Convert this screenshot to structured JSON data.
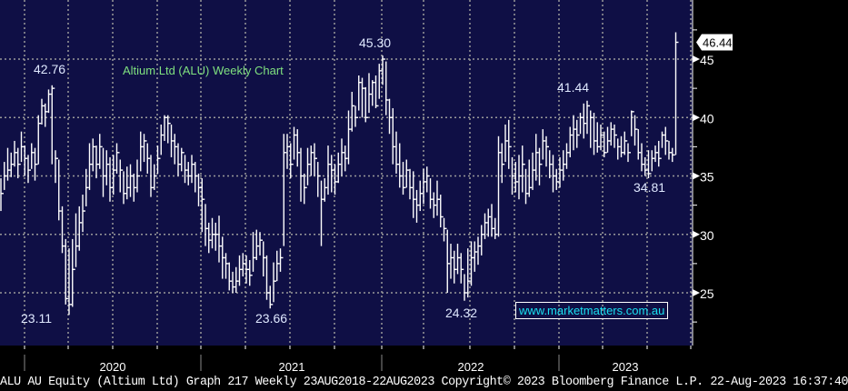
{
  "chart_data": {
    "type": "ohlc-bar",
    "title": "Altium Ltd (ALU) Weekly Chart",
    "frequency": "Weekly",
    "ylim": [
      21,
      50
    ],
    "yticks": [
      25,
      30,
      35,
      40,
      45
    ],
    "xtick_labels": [
      "2020",
      "2021",
      "2022",
      "2023"
    ],
    "grid": true,
    "last_price": "46.44",
    "annotations": [
      "42.76",
      "23.11",
      "23.66",
      "45.30",
      "24.32",
      "41.44",
      "34.81"
    ],
    "close": [
      33.5,
      35,
      35.5,
      36,
      37,
      36,
      37.5,
      36.5,
      35.5,
      37,
      36,
      39.5,
      41,
      40.5,
      42,
      42.5,
      36.5,
      32,
      29,
      24.5,
      24,
      27,
      29,
      31,
      32,
      34,
      36,
      37.5,
      36,
      37.5,
      35,
      36,
      34,
      35.5,
      37,
      35.5,
      33.5,
      34,
      35,
      34,
      35,
      37.5,
      38,
      36.5,
      34,
      35,
      36.5,
      38.5,
      40,
      39.5,
      38,
      37.5,
      36,
      37,
      35.5,
      35,
      36,
      35,
      34,
      33,
      30.5,
      29.5,
      30,
      30,
      29,
      28,
      27.5,
      26,
      25.5,
      26,
      27,
      27.5,
      27,
      26.5,
      28,
      29,
      29.5,
      28,
      25,
      24,
      26,
      27.5,
      28,
      37,
      37.5,
      36,
      38.5,
      37,
      35,
      34,
      36,
      37,
      36.5,
      35,
      33,
      34,
      36,
      35.5,
      34.5,
      36,
      37,
      36.5,
      39,
      41,
      40,
      43,
      42.5,
      40,
      42,
      43,
      41,
      44,
      45,
      41.5,
      40,
      37.5,
      36,
      35,
      34,
      35.5,
      34,
      33,
      32.5,
      33.5,
      34.5,
      35,
      33,
      32.5,
      33,
      31.5,
      30.5,
      27.5,
      28,
      27,
      28,
      27,
      25,
      26,
      28,
      28.5,
      29,
      30,
      31,
      31.5,
      30.5,
      30,
      37,
      36,
      38,
      37.5,
      35,
      34.5,
      35,
      36,
      33.5,
      34,
      35.5,
      37,
      36,
      38,
      37.5,
      36,
      35,
      34.5,
      35.5,
      36,
      37,
      38.5,
      39,
      38.5,
      40,
      39.5,
      41,
      40,
      38,
      37.5,
      38.5,
      37,
      38,
      39,
      38.5,
      37.5,
      37,
      38,
      37,
      40.5,
      39,
      37,
      36,
      35.5,
      35.2,
      36.5,
      37,
      36.5,
      38.5,
      38,
      37,
      36.8,
      46.44
    ],
    "high": [
      34.8,
      36.2,
      37.4,
      37,
      38,
      37.4,
      38.8,
      37.6,
      36.8,
      37.8,
      37.4,
      40.2,
      41.6,
      41.2,
      42.4,
      42.76,
      37.2,
      36.4,
      32.4,
      29.6,
      28.8,
      29.6,
      31.8,
      32.4,
      33.4,
      35.6,
      37.8,
      38.2,
      37.6,
      38.6,
      37.4,
      37.2,
      36.6,
      36.8,
      37.8,
      36.4,
      35.4,
      35.8,
      36,
      35.2,
      36.4,
      38.8,
      38.6,
      37.8,
      36.8,
      36,
      37.6,
      39.4,
      40.2,
      40.2,
      39.4,
      38.6,
      37.8,
      37.4,
      36.8,
      36.2,
      36.8,
      36.2,
      35.2,
      34.8,
      32.6,
      31,
      31.4,
      31,
      31.6,
      29.8,
      28.4,
      27.6,
      26.8,
      27.2,
      28.2,
      28.4,
      28.2,
      27.8,
      30.2,
      30.4,
      30.2,
      29.4,
      28.2,
      25.6,
      27.6,
      28.6,
      28.8,
      38.6,
      38.6,
      37.8,
      39.2,
      39,
      37.4,
      35.2,
      37.4,
      37.6,
      37.8,
      36.2,
      34.6,
      34.8,
      37.6,
      36.8,
      36,
      37,
      38.2,
      37.6,
      40.6,
      42.2,
      41,
      43.6,
      43.4,
      42.6,
      43.8,
      43.2,
      43.6,
      44.6,
      45.3,
      44.8,
      41.6,
      40.8,
      38.8,
      37.8,
      36.2,
      36.4,
      35.6,
      35.4,
      33.8,
      34.6,
      35.6,
      35.8,
      34.8,
      33.6,
      34.6,
      33.4,
      31.4,
      30.4,
      29.2,
      28.6,
      29.2,
      28.4,
      26.6,
      28.8,
      29.4,
      29.4,
      29.8,
      30.8,
      31.8,
      32.2,
      32.6,
      31.4,
      38.4,
      37.8,
      39.4,
      39.8,
      36.6,
      36.2,
      36.8,
      37.6,
      35.6,
      36.4,
      37,
      38.6,
      37.4,
      39,
      38.4,
      37.2,
      36.8,
      35.6,
      36.6,
      37.2,
      37.8,
      39.2,
      40.2,
      39.8,
      40.4,
      41.2,
      41.44,
      40.6,
      40.4,
      39.6,
      39.4,
      38.8,
      39.2,
      39.6,
      39.4,
      38.2,
      38.4,
      38.8,
      37.8,
      40.6,
      40.2,
      39,
      37.8,
      36.6,
      37.2,
      37.2,
      37.6,
      38,
      38.8,
      39.2,
      38,
      37.4,
      47.3
    ],
    "low": [
      32,
      33.8,
      34.6,
      34.9,
      35.8,
      34.8,
      36.2,
      35,
      34.4,
      35.6,
      34.6,
      36,
      39.4,
      39.2,
      40.4,
      36,
      34.4,
      31.2,
      28.4,
      24,
      23.11,
      23.8,
      27.2,
      28.6,
      30.2,
      32.4,
      33.8,
      35.4,
      34.8,
      35.6,
      33.2,
      34.2,
      32.8,
      33.4,
      35.2,
      33.6,
      32.6,
      33,
      33.2,
      32.8,
      33.6,
      35.4,
      36.2,
      35.2,
      33.2,
      33.8,
      35.2,
      36.8,
      38,
      37.8,
      36.6,
      36,
      35,
      35.4,
      34.4,
      34.2,
      34.4,
      33.6,
      32.4,
      30.2,
      29,
      28.4,
      28.8,
      28.6,
      27.6,
      26.2,
      26.2,
      25.2,
      25,
      25,
      25.6,
      26.4,
      25.8,
      25.6,
      26.8,
      27.8,
      28.2,
      26.4,
      24.4,
      23.66,
      24.2,
      26,
      26.8,
      29,
      35.6,
      34.8,
      36.4,
      35.8,
      32.8,
      32.6,
      34.2,
      35,
      35,
      33.2,
      29,
      32.8,
      33.4,
      33.6,
      33.4,
      34.4,
      35,
      35.4,
      36,
      38.8,
      39.2,
      40.6,
      40,
      39.6,
      40.4,
      41,
      40.8,
      41.6,
      42.8,
      40.2,
      38.6,
      36,
      35.2,
      34,
      33.4,
      34,
      33,
      31.4,
      31,
      32,
      32.6,
      33.6,
      32.2,
      31.4,
      31.6,
      30.6,
      29.4,
      25,
      26.2,
      25.8,
      26.6,
      25.8,
      24.32,
      24.6,
      25.6,
      26.8,
      27.4,
      28.2,
      29.6,
      29.8,
      29.8,
      29.6,
      29.8,
      34.4,
      36.2,
      35.6,
      33.4,
      33.6,
      33,
      33.6,
      32.6,
      33.2,
      33.8,
      34.6,
      34.2,
      36.4,
      35.8,
      34.8,
      33.6,
      33.8,
      34,
      34.6,
      35.6,
      36.6,
      37.2,
      37.4,
      38.6,
      38.2,
      38.6,
      37.4,
      36.8,
      37,
      37.2,
      36.6,
      37,
      37.6,
      37.4,
      36.4,
      36.6,
      36.8,
      36.2,
      38.4,
      37.6,
      36.4,
      35.4,
      35,
      34.81,
      35.4,
      36.2,
      35.8,
      37.4,
      36.8,
      36.4,
      36.2,
      36.8
    ]
  },
  "watermark": "www.marketmatters.com.au",
  "footer": "ALU AU Equity (Altium Ltd) Graph 217  Weekly 23AUG2018-22AUG2023  Copyright© 2023 Bloomberg Finance L.P.  22-Aug-2023 16:37:40",
  "colors": {
    "plot_bg": "#0f0f45",
    "bars": "#ffffff",
    "grid": "#9a9a9a",
    "title": "#7fe07f",
    "labels": "#dfe8ff",
    "watermark": "#19e0f0"
  }
}
